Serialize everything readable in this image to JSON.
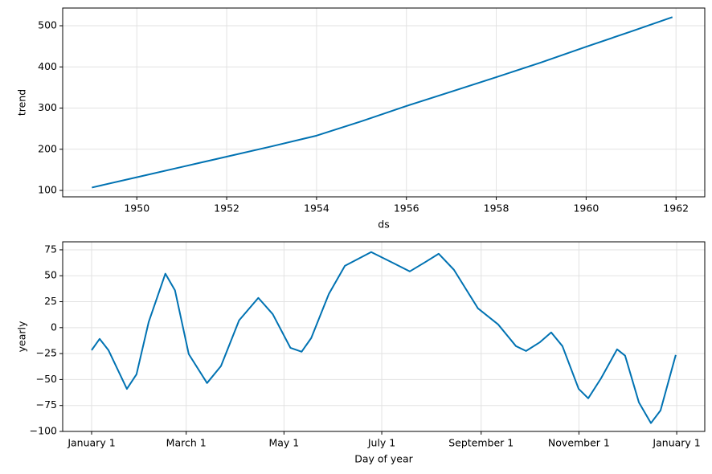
{
  "chart_data": [
    {
      "type": "line",
      "xlabel": "ds",
      "ylabel": "trend",
      "color": "#0072b2",
      "grid": true,
      "x": [
        1949,
        1950,
        1951,
        1952,
        1953,
        1954,
        1955,
        1956,
        1957,
        1958,
        1959,
        1960,
        1961,
        1961.92
      ],
      "values": [
        107,
        132,
        157,
        182,
        207,
        233,
        268,
        305,
        340,
        375,
        411,
        449,
        486,
        521
      ],
      "xlim": [
        1948.35,
        1962.64
      ],
      "xticks": [
        1950,
        1952,
        1954,
        1956,
        1958,
        1960,
        1962
      ],
      "ylim": [
        84.4,
        543
      ],
      "yticks": [
        100,
        200,
        300,
        400,
        500
      ]
    },
    {
      "type": "line",
      "xlabel": "Day of year",
      "ylabel": "yearly",
      "color": "#0072b2",
      "grid": true,
      "x": [
        0,
        5,
        10.5,
        22,
        28,
        35.6,
        46,
        52,
        60.6,
        72,
        80.7,
        92,
        104,
        113,
        124,
        131,
        137,
        148,
        158,
        174.4,
        188.5,
        198.5,
        208.5,
        216.5,
        226,
        241,
        253.6,
        264.7,
        271,
        279.7,
        286.7,
        293.7,
        303.8,
        309.8,
        317.8,
        327.8,
        332.8,
        341.4,
        348.9,
        354.9,
        364.4
      ],
      "values": [
        -21.7,
        -10.8,
        -21.7,
        -59,
        -45,
        5.4,
        52,
        36,
        -25.5,
        -53.4,
        -37,
        7,
        28.7,
        13,
        -19.4,
        -23.2,
        -10,
        32.5,
        59.6,
        72.8,
        62,
        54.2,
        63.5,
        71.2,
        55.8,
        18.6,
        3.1,
        -17.8,
        -22.5,
        -14,
        -4.6,
        -17.8,
        -58.9,
        -68.1,
        -48.8,
        -20.9,
        -27,
        -72,
        -92,
        -79.8,
        -26.3
      ],
      "xlim": [
        -18.05,
        382.5
      ],
      "xticks": [
        {
          "value": 0,
          "label": "January 1"
        },
        {
          "value": 59,
          "label": "March 1"
        },
        {
          "value": 120,
          "label": "May 1"
        },
        {
          "value": 181,
          "label": "July 1"
        },
        {
          "value": 243,
          "label": "September 1"
        },
        {
          "value": 304,
          "label": "November 1"
        },
        {
          "value": 365,
          "label": "January 1"
        }
      ],
      "ylim": [
        -100,
        82.7
      ],
      "yticks": [
        {
          "value": -100,
          "label": "−100"
        },
        {
          "value": -75,
          "label": "−75"
        },
        {
          "value": -50,
          "label": "−50"
        },
        {
          "value": -25,
          "label": "−25"
        },
        0,
        25,
        50,
        75
      ]
    }
  ]
}
